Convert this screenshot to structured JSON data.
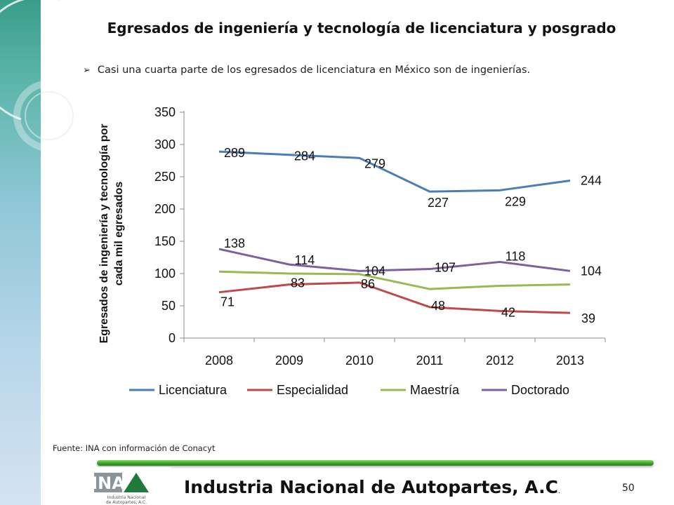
{
  "slide": {
    "title": "Egresados de ingeniería y tecnología de licenciatura y posgrado",
    "bullet": "Casi una cuarta parte de los egresados de licenciatura en México son de ingenierías.",
    "source": "Fuente: INA con información de Conacyt",
    "footer_org": "Industria Nacional de  Autopartes, A.C",
    "footer_dot": ".",
    "page_number": "50",
    "logo_letters": "INA",
    "logo_caption_1": "Industria Nacional",
    "logo_caption_2": "de Autopartes, A.C."
  },
  "colors": {
    "Licenciatura": "#4a7ebb",
    "Especialidad": "#be4b48",
    "Maestría": "#98b954",
    "Doctorado": "#7d60a0",
    "accent_green": "#3aa02c"
  },
  "chart_data": {
    "type": "line",
    "title": "",
    "xlabel": "",
    "ylabel": "Egresados de ingeniería y tecnología por cada mil egresados",
    "categories": [
      "2008",
      "2009",
      "2010",
      "2011",
      "2012",
      "2013"
    ],
    "ylim": [
      0,
      350
    ],
    "yticks": [
      0,
      50,
      100,
      150,
      200,
      250,
      300,
      350
    ],
    "grid": false,
    "legend_position": "bottom",
    "series": [
      {
        "name": "Licenciatura",
        "values": [
          289,
          284,
          279,
          227,
          229,
          244
        ],
        "labels": [
          "289",
          "284",
          "279",
          "227",
          "229",
          "244"
        ]
      },
      {
        "name": "Especialidad",
        "values": [
          71,
          83,
          86,
          48,
          42,
          39
        ],
        "labels": [
          "71",
          "83",
          "86",
          "48",
          "42",
          "39"
        ]
      },
      {
        "name": "Maestría",
        "values": [
          103,
          100,
          99,
          76,
          81,
          83
        ],
        "labels": []
      },
      {
        "name": "Doctorado",
        "values": [
          138,
          114,
          104,
          107,
          118,
          104
        ],
        "labels": [
          "138",
          "114",
          "104",
          "107",
          "118",
          "104"
        ]
      }
    ]
  }
}
